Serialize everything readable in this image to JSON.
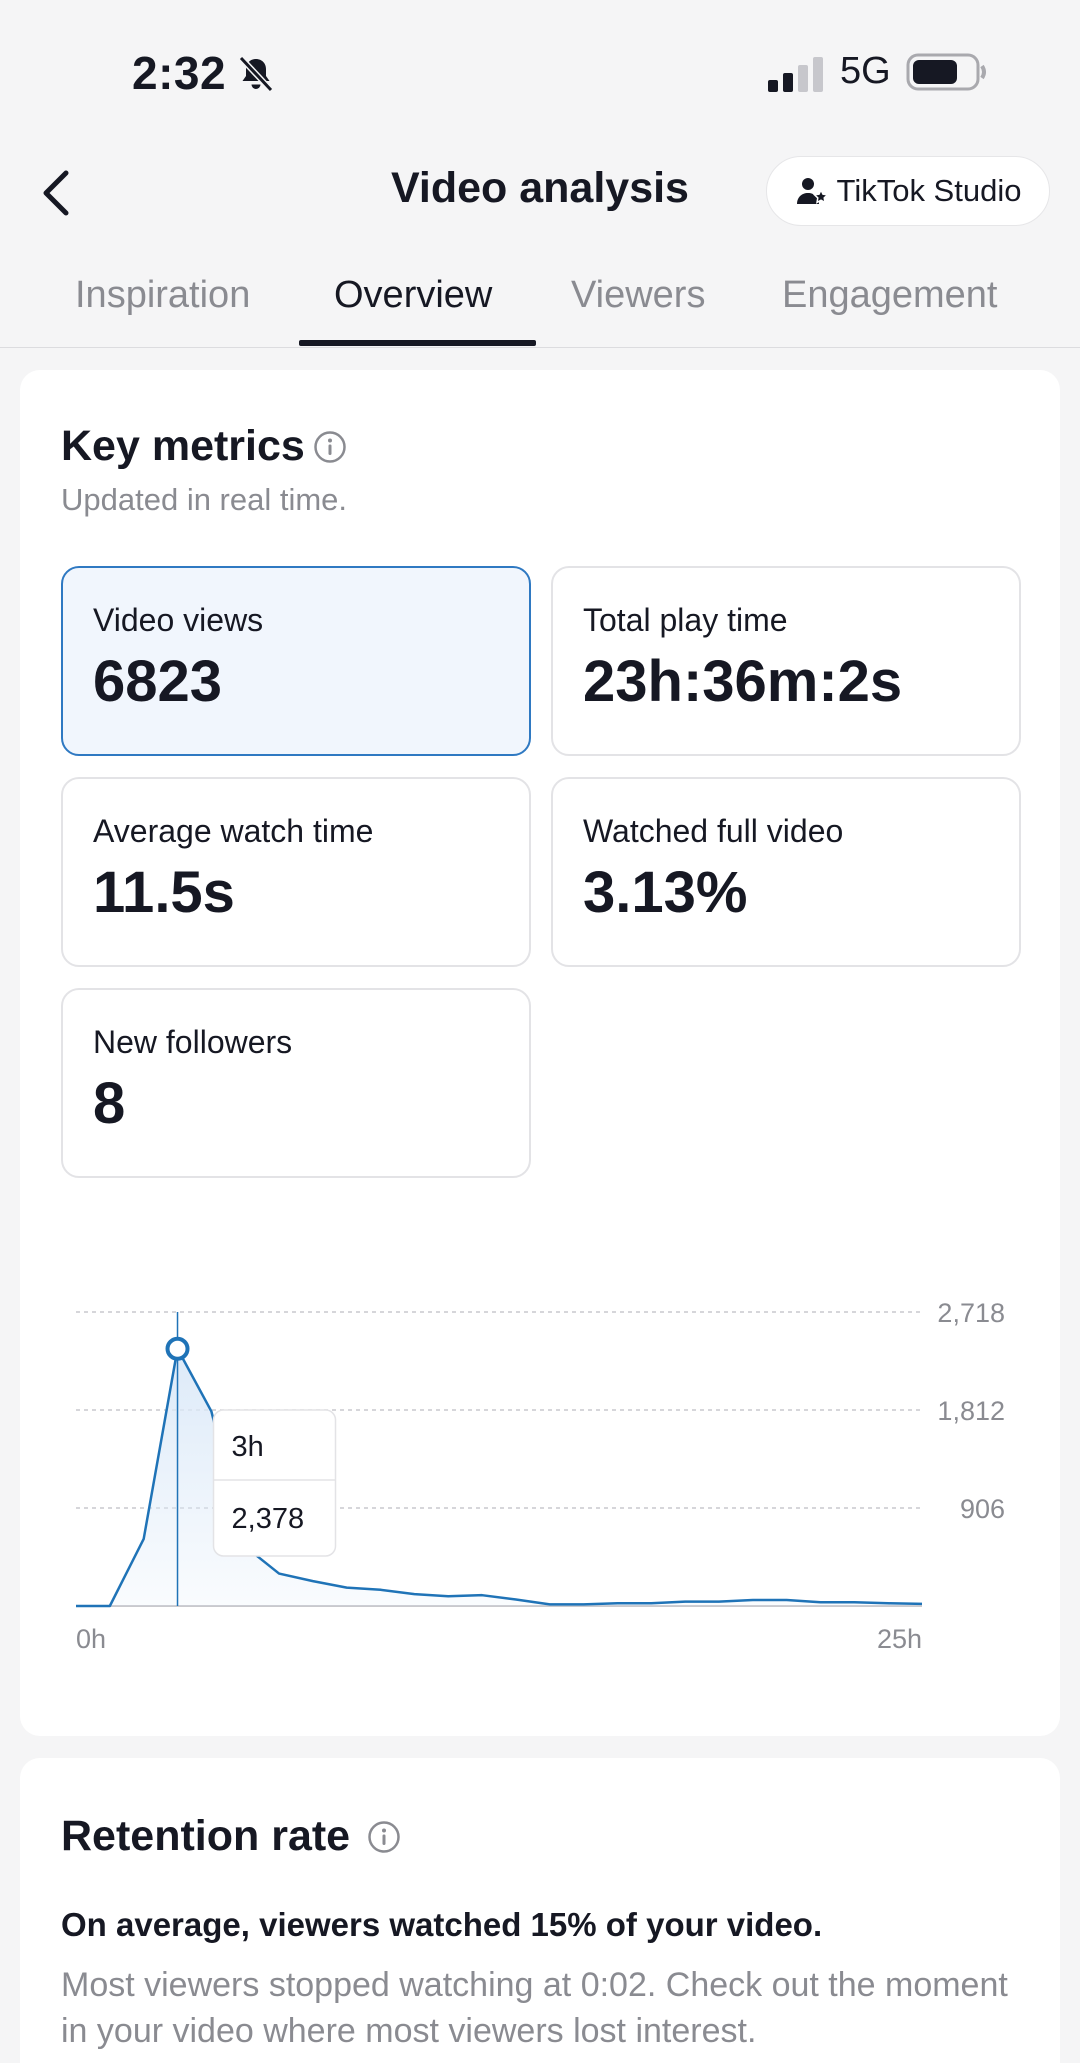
{
  "status_bar": {
    "time": "2:32",
    "network": "5G",
    "bell_icon": "bell-slash-icon",
    "signal_icon": "signal-bars-icon",
    "battery_icon": "battery-icon"
  },
  "header": {
    "title": "Video analysis",
    "back_icon": "chevron-left-icon",
    "studio_label": "TikTok Studio",
    "studio_icon": "user-star-icon"
  },
  "tabs": [
    {
      "label": "Inspiration",
      "active": false
    },
    {
      "label": "Overview",
      "active": true
    },
    {
      "label": "Viewers",
      "active": false
    },
    {
      "label": "Engagement",
      "active": false
    }
  ],
  "key_metrics": {
    "title": "Key metrics",
    "subtitle": "Updated in real time.",
    "metrics": [
      {
        "label": "Video views",
        "value": "6823",
        "selected": true
      },
      {
        "label": "Total play time",
        "value": "23h:36m:2s",
        "selected": false
      },
      {
        "label": "Average watch time",
        "value": "11.5s",
        "selected": false
      },
      {
        "label": "Watched full video",
        "value": "3.13%",
        "selected": false
      },
      {
        "label": "New followers",
        "value": "8",
        "selected": false
      }
    ]
  },
  "chart_data": {
    "type": "area",
    "x_unit": "h",
    "x": [
      0,
      1,
      2,
      3,
      4,
      5,
      6,
      7,
      8,
      9,
      10,
      11,
      12,
      13,
      14,
      15,
      16,
      17,
      18,
      19,
      20,
      21,
      22,
      23,
      24,
      25
    ],
    "values": [
      0,
      0,
      620,
      2378,
      1800,
      550,
      300,
      230,
      170,
      150,
      110,
      90,
      100,
      60,
      15,
      15,
      25,
      25,
      40,
      40,
      55,
      55,
      35,
      35,
      25,
      20
    ],
    "ylim": [
      0,
      2718
    ],
    "y_ticks": [
      "906",
      "1,812",
      "2,718"
    ],
    "x_tick_labels": [
      "0h",
      "25h"
    ],
    "tooltip": {
      "x_index": 3,
      "label": "3h",
      "value": "2,378"
    },
    "line_color": "#1f73b7",
    "fill_color": "#dbe9f8",
    "grid": true
  },
  "retention": {
    "title": "Retention rate",
    "summary": "On average, viewers watched 15% of your video.",
    "detail": "Most viewers stopped watching at 0:02. Check out the moment in your video where most viewers lost interest."
  }
}
